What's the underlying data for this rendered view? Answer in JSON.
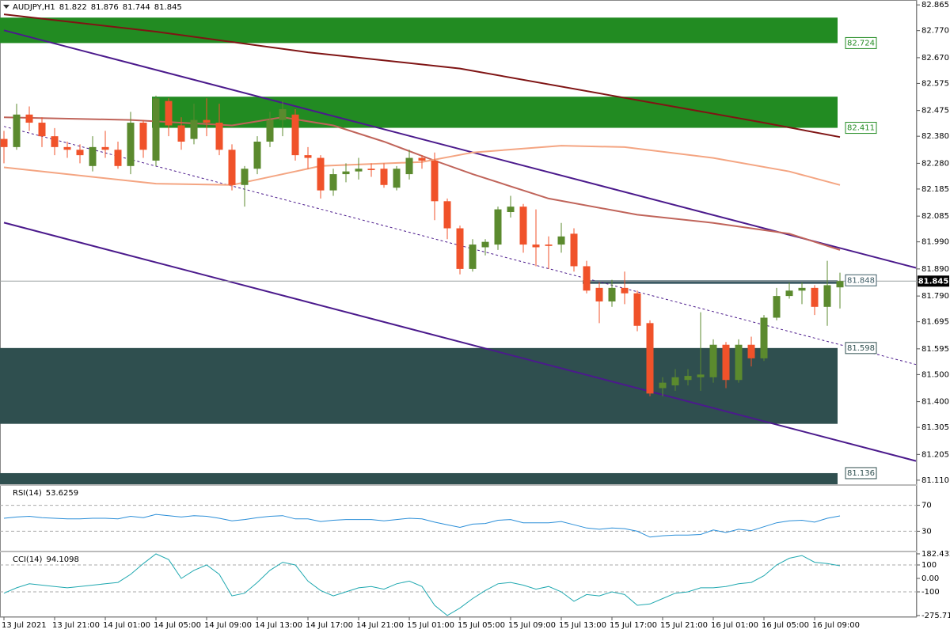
{
  "chart_data": [
    {
      "type": "candlestick",
      "title": "AUDJPY,H1",
      "categories": [
        "13 Jul 2021",
        null,
        null,
        null,
        "13 Jul 21:00",
        null,
        null,
        null,
        "14 Jul 01:00",
        null,
        null,
        null,
        "14 Jul 05:00",
        null,
        null,
        null,
        "14 Jul 09:00",
        null,
        null,
        null,
        "14 Jul 13:00",
        null,
        null,
        null,
        "14 Jul 17:00",
        null,
        null,
        null,
        "14 Jul 21:00",
        null,
        null,
        null,
        "15 Jul 01:00",
        null,
        null,
        null,
        "15 Jul 05:00",
        null,
        null,
        null,
        "15 Jul 09:00",
        null,
        null,
        null,
        "15 Jul 13:00",
        null,
        null,
        null,
        "15 Jul 17:00",
        null,
        null,
        null,
        "15 Jul 21:00",
        null,
        null,
        null,
        "16 Jul 01:00",
        null,
        null,
        null,
        "16 Jul 05:00",
        null,
        null,
        null,
        "16 Jul 09:00",
        null,
        null
      ],
      "open": [
        82.37,
        82.34,
        82.46,
        82.43,
        82.38,
        82.34,
        82.33,
        82.27,
        82.34,
        82.33,
        82.27,
        82.43,
        82.29,
        82.51,
        82.42,
        82.37,
        82.44,
        82.43,
        82.33,
        82.2,
        82.26,
        82.36,
        82.44,
        82.46,
        82.31,
        82.3,
        82.18,
        82.24,
        82.25,
        82.26,
        82.26,
        82.19,
        82.24,
        82.3,
        82.29,
        82.14,
        82.04,
        81.89,
        81.97,
        81.98,
        82.1,
        82.12,
        81.98,
        81.98,
        81.98,
        82.02,
        81.9,
        81.82,
        81.77,
        81.82,
        81.8,
        81.69,
        81.45,
        81.46,
        81.48,
        81.49,
        81.49,
        81.61,
        81.48,
        81.61,
        81.56,
        81.71,
        81.79,
        81.81,
        81.82,
        81.75,
        81.822
      ],
      "high": [
        82.4,
        82.5,
        82.49,
        82.45,
        82.41,
        82.36,
        82.35,
        82.38,
        82.4,
        82.36,
        82.47,
        82.44,
        82.53,
        82.52,
        82.45,
        82.5,
        82.52,
        82.5,
        82.35,
        82.27,
        82.38,
        82.47,
        82.51,
        82.48,
        82.34,
        82.31,
        82.26,
        82.28,
        82.3,
        82.28,
        82.28,
        82.27,
        82.33,
        82.31,
        82.32,
        82.15,
        82.05,
        82.0,
        82.0,
        82.12,
        82.16,
        82.13,
        82.11,
        82.01,
        82.06,
        82.04,
        81.92,
        81.84,
        81.85,
        81.88,
        81.81,
        81.7,
        81.49,
        81.52,
        81.52,
        81.73,
        81.63,
        81.62,
        81.63,
        81.64,
        81.72,
        81.82,
        81.84,
        81.84,
        81.83,
        81.92,
        81.876
      ],
      "low": [
        82.28,
        82.33,
        82.4,
        82.34,
        82.31,
        82.3,
        82.28,
        82.25,
        82.3,
        82.26,
        82.24,
        82.3,
        82.27,
        82.38,
        82.33,
        82.35,
        82.38,
        82.31,
        82.18,
        82.12,
        82.24,
        82.34,
        82.38,
        82.29,
        82.26,
        82.15,
        82.16,
        82.21,
        82.22,
        82.23,
        82.19,
        82.18,
        82.22,
        82.26,
        82.07,
        82.0,
        81.87,
        81.88,
        81.94,
        81.96,
        82.08,
        81.95,
        81.9,
        81.89,
        81.95,
        81.88,
        81.8,
        81.69,
        81.75,
        81.76,
        81.66,
        81.42,
        81.42,
        81.44,
        81.46,
        81.44,
        81.47,
        81.45,
        81.47,
        81.53,
        81.55,
        81.7,
        81.78,
        81.76,
        81.72,
        81.68,
        81.744
      ],
      "close": [
        82.34,
        82.46,
        82.43,
        82.38,
        82.34,
        82.33,
        82.31,
        82.34,
        82.33,
        82.27,
        82.43,
        82.33,
        82.52,
        82.42,
        82.36,
        82.44,
        82.43,
        82.33,
        82.2,
        82.26,
        82.36,
        82.44,
        82.48,
        82.31,
        82.3,
        82.18,
        82.24,
        82.25,
        82.26,
        82.255,
        82.2,
        82.26,
        82.3,
        82.29,
        82.14,
        82.04,
        81.89,
        81.98,
        81.99,
        82.11,
        82.12,
        81.98,
        81.97,
        81.975,
        82.01,
        81.9,
        81.81,
        81.77,
        81.82,
        81.8,
        81.68,
        81.43,
        81.47,
        81.49,
        81.495,
        81.5,
        81.61,
        81.48,
        81.61,
        81.56,
        81.71,
        81.79,
        81.81,
        81.82,
        81.75,
        81.83,
        81.845
      ],
      "up_color": "#5b8a2e",
      "down_color": "#f0522a",
      "ylim": [
        81.095,
        82.883
      ],
      "yticks": [
        82.865,
        {
          "value": 82.77,
          "label": "82.770"
        },
        {
          "value": 82.67,
          "label": "82.670"
        },
        82.575,
        82.475,
        {
          "value": 82.38,
          "label": "82.380"
        },
        {
          "value": 82.28,
          "label": "82.280"
        },
        82.185,
        82.085,
        {
          "value": 81.99,
          "label": "81.990"
        },
        {
          "value": 81.89,
          "label": "81.890"
        },
        {
          "value": 81.79,
          "label": "81.790"
        },
        81.695,
        81.595,
        {
          "value": 81.5,
          "label": "81.500"
        },
        {
          "value": 81.4,
          "label": "81.400"
        },
        81.305,
        81.205,
        {
          "value": 81.11,
          "label": "81.110"
        }
      ],
      "zones": [
        {
          "color": "#228b22",
          "from": 0,
          "to": 66,
          "level": 82.724,
          "edge": 82.818
        },
        {
          "color": "#228b22",
          "from": 12,
          "to": 66,
          "level": 82.411,
          "edge": 82.526
        },
        {
          "color": "#2f4f4f",
          "from": 0,
          "to": 66,
          "level": 81.598,
          "edge": 81.318
        },
        {
          "color": "#2f4f4f",
          "from": 0,
          "to": 66,
          "level": 81.136,
          "edge": 81.095
        },
        {
          "color": "#3c5a64",
          "from": 46,
          "to": 66,
          "level": 81.848,
          "edge": 81.835
        }
      ],
      "trendlines": [
        {
          "color": "#4b1a8c",
          "dashed": false,
          "x": [
            0,
            72
          ],
          "values": [
            82.771,
            81.894
          ]
        },
        {
          "color": "#4b1a8c",
          "dashed": false,
          "x": [
            0,
            72
          ],
          "values": [
            82.061,
            81.181
          ]
        },
        {
          "color": "#4b1a8c",
          "dashed": true,
          "x": [
            0,
            72
          ],
          "values": [
            82.416,
            81.537
          ]
        }
      ],
      "moving_averages": [
        {
          "color": "#7f1414",
          "x": [
            0,
            12,
            24,
            36,
            48,
            60,
            66
          ],
          "values": [
            82.83,
            82.766,
            82.69,
            82.63,
            82.53,
            82.43,
            82.377
          ]
        },
        {
          "color": "#c0645a",
          "x": [
            0,
            10,
            18,
            22,
            26,
            30,
            34,
            37,
            43,
            50,
            56,
            62,
            66
          ],
          "values": [
            82.45,
            82.44,
            82.42,
            82.45,
            82.42,
            82.36,
            82.29,
            82.24,
            82.15,
            82.09,
            82.06,
            82.02,
            81.96
          ]
        },
        {
          "color": "#f4a582",
          "x": [
            0,
            12,
            18,
            25,
            33,
            37,
            44,
            49,
            56,
            62,
            66
          ],
          "values": [
            82.265,
            82.205,
            82.2,
            82.27,
            82.285,
            82.32,
            82.345,
            82.34,
            82.3,
            82.25,
            82.2
          ]
        }
      ]
    },
    {
      "type": "line",
      "title": "RSI(14)",
      "color": "#2a8ed8",
      "values": [
        50,
        52,
        53,
        51,
        50,
        49,
        49,
        50,
        50,
        49,
        53,
        51,
        56,
        54,
        52,
        54,
        53,
        50,
        46,
        48,
        51,
        53,
        54,
        49,
        49,
        45,
        47,
        48,
        48,
        48,
        46,
        48,
        50,
        49,
        44,
        40,
        36,
        41,
        42,
        47,
        48,
        43,
        43,
        43,
        45,
        40,
        35,
        33,
        35,
        34,
        30,
        21,
        23,
        24,
        24,
        25,
        32,
        28,
        33,
        31,
        37,
        43,
        46,
        47,
        44,
        50,
        53.6259
      ],
      "ylim": [
        0,
        100
      ],
      "levels": [
        70,
        30
      ]
    },
    {
      "type": "line",
      "title": "CCI(14)",
      "color": "#20a8b0",
      "values": [
        -110,
        -70,
        -40,
        -50,
        -60,
        -70,
        -60,
        -50,
        -40,
        -30,
        30,
        110,
        182.4326,
        140,
        0,
        60,
        100,
        30,
        -130,
        -110,
        -30,
        60,
        120,
        100,
        -20,
        -90,
        -130,
        -100,
        -70,
        -60,
        -80,
        -40,
        -20,
        -60,
        -200,
        -275.719,
        -220,
        -150,
        -90,
        -40,
        -30,
        -50,
        -80,
        -60,
        -100,
        -170,
        -120,
        -130,
        -100,
        -120,
        -200,
        -190,
        -150,
        -110,
        -100,
        -70,
        -70,
        -60,
        -40,
        -30,
        20,
        100,
        150,
        170,
        120,
        110,
        94.1098
      ],
      "ylim": [
        -288,
        194
      ],
      "yticks": [
        182.4326,
        {
          "value": 0,
          "label": "0.00"
        },
        -275.719
      ],
      "levels": [
        100,
        -100
      ]
    }
  ]
}
